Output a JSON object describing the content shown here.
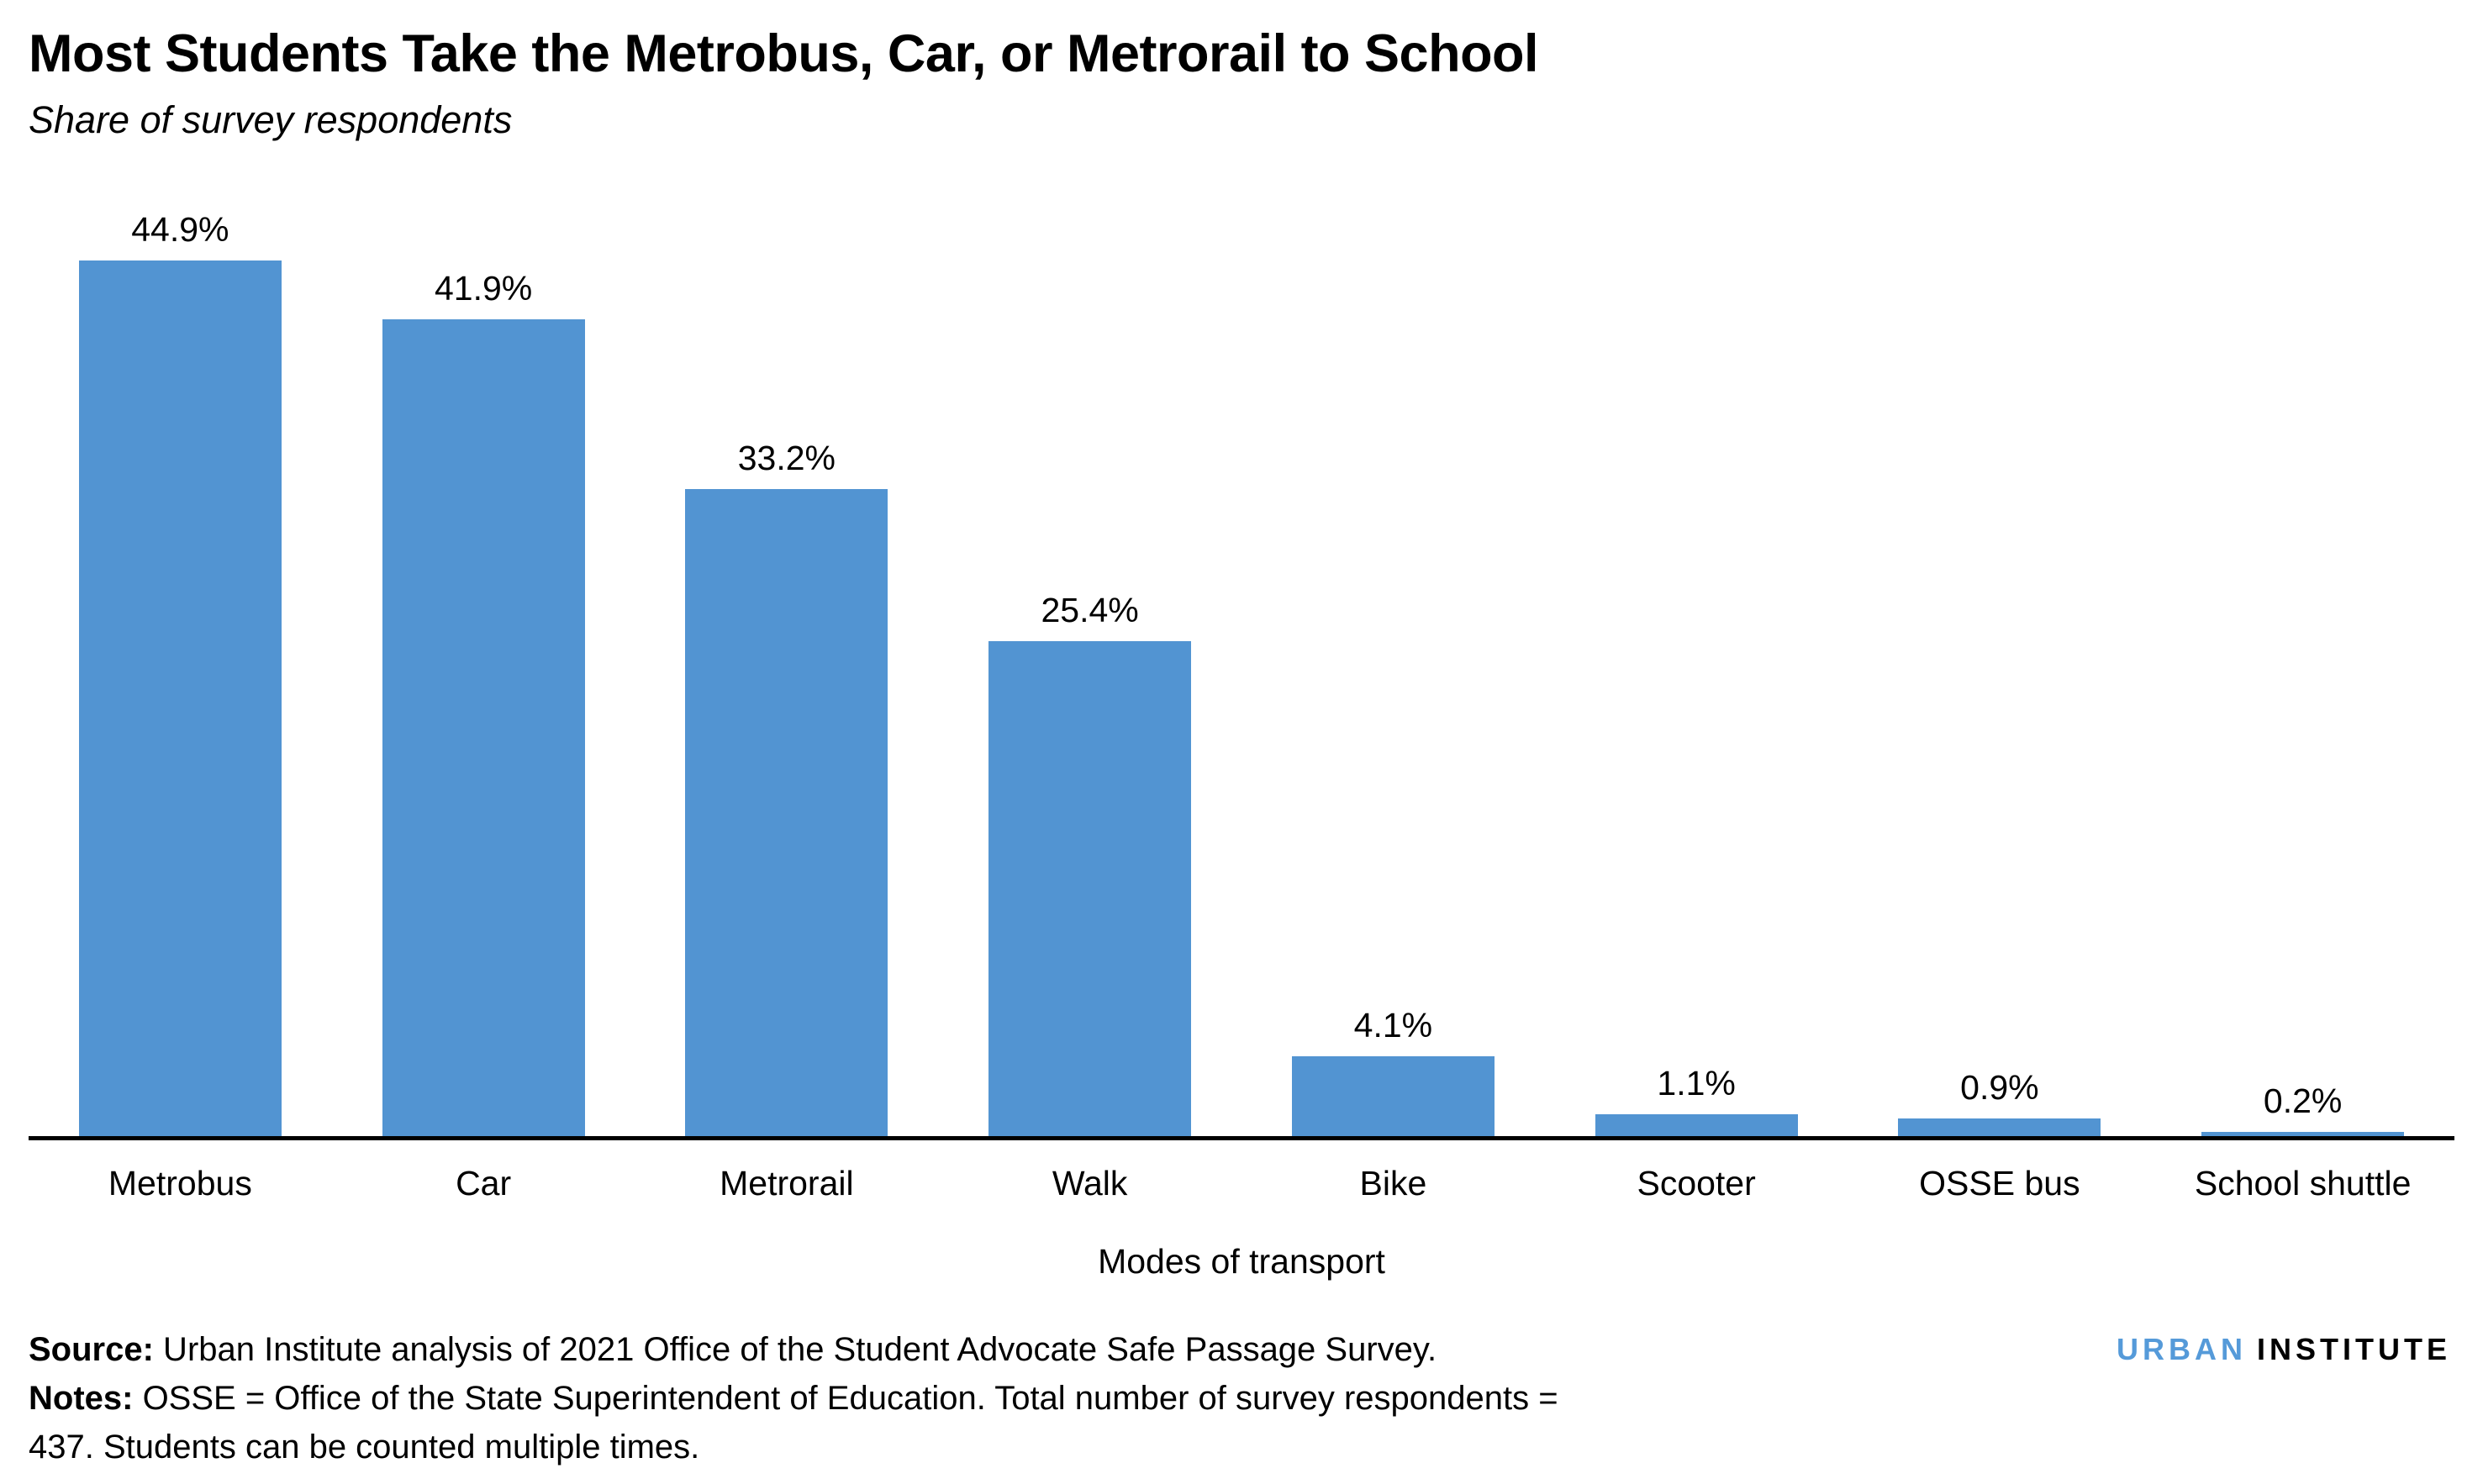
{
  "header": {
    "title": "Most Students Take the Metrobus, Car, or Metrorail to School",
    "subtitle": "Share of survey respondents"
  },
  "chart_data": {
    "type": "bar",
    "categories": [
      "Metrobus",
      "Car",
      "Metrorail",
      "Walk",
      "Bike",
      "Scooter",
      "OSSE bus",
      "School shuttle"
    ],
    "values": [
      44.9,
      41.9,
      33.2,
      25.4,
      4.1,
      1.1,
      0.9,
      0.2
    ],
    "value_labels": [
      "44.9%",
      "41.9%",
      "33.2%",
      "25.4%",
      "4.1%",
      "1.1%",
      "0.9%",
      "0.2%"
    ],
    "title": "Most Students Take the Metrobus, Car, or Metrorail to School",
    "subtitle": "Share of survey respondents",
    "xlabel": "Modes of transport",
    "ylabel": "",
    "ylim": [
      0,
      50
    ],
    "grid": false,
    "legend": false,
    "value_labels_position": "above bars",
    "bar_color": "#5294D2",
    "axis_line_color": "#000000"
  },
  "footer": {
    "source_label": "Source:",
    "source_text": " Urban Institute analysis of 2021 Office of the Student Advocate Safe Passage Survey.",
    "notes_label": "Notes:",
    "notes_text": " OSSE = Office of the State Superintendent of Education. Total number of survey respondents = 437. Students can be counted multiple times.",
    "logo": {
      "word1": "URBAN",
      "word2": "INSTITUTE",
      "word1_color": "#559AD9",
      "word2_color": "#000000"
    }
  }
}
